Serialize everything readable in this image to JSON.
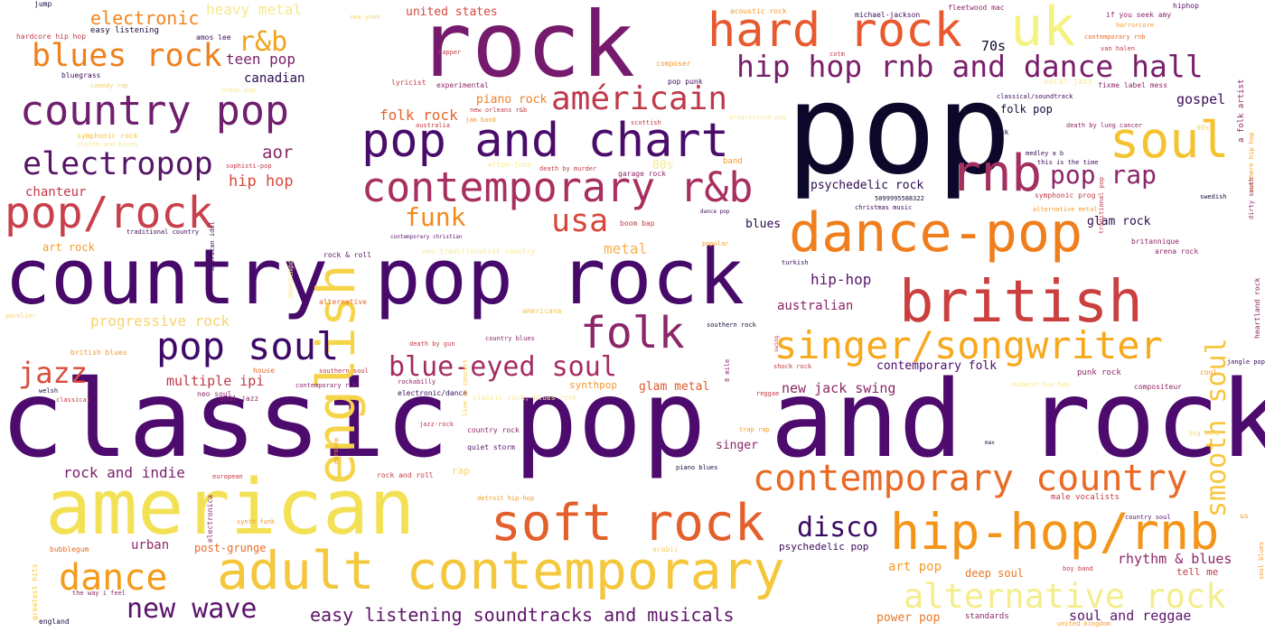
{
  "words": [
    {
      "text": "pop",
      "color": "#0d0829"
    },
    {
      "text": "classic pop and rock",
      "color": "#4e0b6e"
    },
    {
      "text": "country pop rock",
      "color": "#470a6b"
    },
    {
      "text": "rock",
      "color": "#751a6c"
    },
    {
      "text": "american",
      "color": "#f3e155"
    },
    {
      "text": "english",
      "color": "#f5d44a"
    },
    {
      "text": "adult contemporary",
      "color": "#f4c73c"
    },
    {
      "text": "uk",
      "color": "#f4f281"
    },
    {
      "text": "hard rock",
      "color": "#e8592f"
    },
    {
      "text": "soft rock",
      "color": "#e35f2c"
    },
    {
      "text": "contemporary r&b",
      "color": "#a82f5f"
    },
    {
      "text": "dance-pop",
      "color": "#f07e1c"
    },
    {
      "text": "british",
      "color": "#c9403f"
    },
    {
      "text": "rnb",
      "color": "#a4305f"
    },
    {
      "text": "soul",
      "color": "#f5c32f"
    },
    {
      "text": "pop and chart",
      "color": "#4a0c6b"
    },
    {
      "text": "hip-hop/rnb",
      "color": "#f39518"
    },
    {
      "text": "singer/songwriter",
      "color": "#f8a81b"
    },
    {
      "text": "contemporary country",
      "color": "#e86a24"
    },
    {
      "text": "country pop",
      "color": "#701f6e"
    },
    {
      "text": "alternative rock",
      "color": "#f4ed8b"
    },
    {
      "text": "hip hop rnb and dance hall",
      "color": "#7a1e6c"
    },
    {
      "text": "pop soul",
      "color": "#3f0a67"
    },
    {
      "text": "folk",
      "color": "#8c2769"
    },
    {
      "text": "pop/rock",
      "color": "#c8404b"
    },
    {
      "text": "américain",
      "color": "#c0394a"
    },
    {
      "text": "electropop",
      "color": "#571668"
    },
    {
      "text": "blues rock",
      "color": "#f0801c"
    },
    {
      "text": "smooth soul",
      "color": "#f6c63d"
    },
    {
      "text": "usa",
      "color": "#d9473b"
    },
    {
      "text": "blue-eyed soul",
      "color": "#a52d62"
    },
    {
      "text": "jazz",
      "color": "#d84d3d"
    },
    {
      "text": "dance",
      "color": "#f59a19"
    },
    {
      "text": "disco",
      "color": "#3c0b62"
    },
    {
      "text": "funk",
      "color": "#f58a1a"
    },
    {
      "text": "pop rap",
      "color": "#8c2669"
    },
    {
      "text": "new wave",
      "color": "#5a146c"
    },
    {
      "text": "easy listening soundtracks and musicals",
      "color": "#5f156b"
    },
    {
      "text": "r&b",
      "color": "#f1a41c"
    },
    {
      "text": "electronic",
      "color": "#f0851f"
    },
    {
      "text": "heavy metal",
      "color": "#f6e98d"
    },
    {
      "text": "teen pop",
      "color": "#7a1f6b"
    },
    {
      "text": "canadian",
      "color": "#2a0b4e"
    },
    {
      "text": "aor",
      "color": "#8b2767"
    },
    {
      "text": "chanteur",
      "color": "#c13a45"
    },
    {
      "text": "hip hop",
      "color": "#d9483b"
    },
    {
      "text": "70s",
      "color": "#0f0a2a"
    },
    {
      "text": "gospel",
      "color": "#3a0b5a"
    },
    {
      "text": "folk rock",
      "color": "#e6622a"
    },
    {
      "text": "piano rock",
      "color": "#ef7f28"
    },
    {
      "text": "metal",
      "color": "#f7b14d"
    },
    {
      "text": "hip-hop",
      "color": "#5b146a"
    },
    {
      "text": "australian",
      "color": "#8a2767"
    },
    {
      "text": "progressive rock",
      "color": "#f6d36d"
    },
    {
      "text": "multiple ipi",
      "color": "#c13a45"
    },
    {
      "text": "glam metal",
      "color": "#e0592c"
    },
    {
      "text": "new jack swing",
      "color": "#8e2767"
    },
    {
      "text": "contemporary folk",
      "color": "#4a0c6b"
    },
    {
      "text": "rock and indie",
      "color": "#7a1f6b"
    },
    {
      "text": "singer",
      "color": "#8a2767"
    },
    {
      "text": "urban",
      "color": "#8e2767"
    },
    {
      "text": "post-grunge",
      "color": "#e86a24"
    },
    {
      "text": "art pop",
      "color": "#f59a2a"
    },
    {
      "text": "deep soul",
      "color": "#e8782a"
    },
    {
      "text": "rhythm & blues",
      "color": "#8e2767"
    },
    {
      "text": "soul and reggae",
      "color": "#5a146c"
    },
    {
      "text": "power pop",
      "color": "#e8782a"
    },
    {
      "text": "glam rock",
      "color": "#2a0b4e"
    },
    {
      "text": "psychedelic rock",
      "color": "#2a0b4e"
    },
    {
      "text": "psychedelic pop",
      "color": "#3a0b5a"
    },
    {
      "text": "blues",
      "color": "#2a0b4e"
    },
    {
      "text": "folk pop",
      "color": "#1a0a3a"
    },
    {
      "text": "united states",
      "color": "#d9473b"
    },
    {
      "text": "80s",
      "color": "#f6e98d"
    },
    {
      "text": "tell me",
      "color": "#c13a45"
    },
    {
      "text": "art rock",
      "color": "#f59a2a"
    },
    {
      "text": "standards",
      "color": "#8e2767"
    },
    {
      "text": "jump",
      "color": "#1a0a3a"
    },
    {
      "text": "hardcore hip hop",
      "color": "#c13a45"
    },
    {
      "text": "easy listening",
      "color": "#1a0a3a"
    },
    {
      "text": "amos lee",
      "color": "#3a0b5a"
    },
    {
      "text": "bluegrass",
      "color": "#3a0b5a"
    },
    {
      "text": "comedy rap",
      "color": "#f6d36d"
    },
    {
      "text": "urban pop",
      "color": "#f6e98d"
    },
    {
      "text": "symphonic rock",
      "color": "#f6c63d"
    },
    {
      "text": "rhythm and blues",
      "color": "#f6e98d"
    },
    {
      "text": "sophisti-pop",
      "color": "#c13a45"
    },
    {
      "text": "american idol",
      "color": "#3a0b5a"
    },
    {
      "text": "traditional country",
      "color": "#3a0b5a"
    },
    {
      "text": "downtempo",
      "color": "#f6e98d"
    },
    {
      "text": "rock & roll",
      "color": "#5a146c"
    },
    {
      "text": "alternative",
      "color": "#e86a24"
    },
    {
      "text": "parolier",
      "color": "#f6d36d"
    },
    {
      "text": "british blues",
      "color": "#f59a2a"
    },
    {
      "text": "welsh",
      "color": "#1a0a3a"
    },
    {
      "text": "classical",
      "color": "#c13a45"
    },
    {
      "text": "house",
      "color": "#e86a24"
    },
    {
      "text": "neo soul",
      "color": "#8e2767"
    },
    {
      "text": "soul jazz",
      "color": "#8e2767"
    },
    {
      "text": "southern soul",
      "color": "#c13a45"
    },
    {
      "text": "contemporary r b",
      "color": "#8e2767"
    },
    {
      "text": "rockabilly",
      "color": "#8e2767"
    },
    {
      "text": "electronic/dance",
      "color": "#3a0b5a"
    },
    {
      "text": "synthpop",
      "color": "#f59a2a"
    },
    {
      "text": "classic rock, blues rock",
      "color": "#f6e98d"
    },
    {
      "text": "electronica",
      "color": "#8e2767"
    },
    {
      "text": "european",
      "color": "#c13a45"
    },
    {
      "text": "synth funk",
      "color": "#f59a2a"
    },
    {
      "text": "greatest hits",
      "color": "#f6c63d"
    },
    {
      "text": "bubblegum",
      "color": "#e86a24"
    },
    {
      "text": "the way i feel",
      "color": "#8e2767"
    },
    {
      "text": "england",
      "color": "#1a0a3a"
    },
    {
      "text": "country rock",
      "color": "#8e2767"
    },
    {
      "text": "quiet storm",
      "color": "#5a146c"
    },
    {
      "text": "rock and roll",
      "color": "#c13a45"
    },
    {
      "text": "rap",
      "color": "#f6d36d"
    },
    {
      "text": "detroit hip-hop",
      "color": "#f59a2a"
    },
    {
      "text": "arabic",
      "color": "#f6d36d"
    },
    {
      "text": "jazz-rock",
      "color": "#c13a45"
    },
    {
      "text": "europop",
      "color": "#f59a2a"
    },
    {
      "text": "trap rap",
      "color": "#f59a2a"
    },
    {
      "text": "piano blues",
      "color": "#1a0a3a"
    },
    {
      "text": "max",
      "color": "#1a0a3a"
    },
    {
      "text": "reggae",
      "color": "#c13a45"
    },
    {
      "text": "midwest hip hop",
      "color": "#f6e98d"
    },
    {
      "text": "compositeur",
      "color": "#8e2767"
    },
    {
      "text": "big band",
      "color": "#f6d36d"
    },
    {
      "text": "country soul",
      "color": "#5a146c"
    },
    {
      "text": "male vocalists",
      "color": "#c13a45"
    },
    {
      "text": "boy band",
      "color": "#c13a45"
    },
    {
      "text": "united kingdom",
      "color": "#f59a2a"
    },
    {
      "text": "us",
      "color": "#f59a2a"
    },
    {
      "text": "soul blues",
      "color": "#f59a2a"
    },
    {
      "text": "sea yoon",
      "color": "#f6d36d"
    },
    {
      "text": "michael-jackson",
      "color": "#3a0b5a"
    },
    {
      "text": "fleetwood mac",
      "color": "#8e2767"
    },
    {
      "text": "acoustic rock",
      "color": "#f59a2a"
    },
    {
      "text": "if you seek amy",
      "color": "#8e2767"
    },
    {
      "text": "hiphop",
      "color": "#5a146c"
    },
    {
      "text": "horrorcore",
      "color": "#f59a2a"
    },
    {
      "text": "contemporary rnb",
      "color": "#e86a24"
    },
    {
      "text": "van halen",
      "color": "#c13a45"
    },
    {
      "text": "cotm",
      "color": "#c13a45"
    },
    {
      "text": "rapper",
      "color": "#c13a45"
    },
    {
      "text": "composer",
      "color": "#f59a2a"
    },
    {
      "text": "lyricist",
      "color": "#c13a45"
    },
    {
      "text": "experimental",
      "color": "#8e2767"
    },
    {
      "text": "pop punk",
      "color": "#3a0b5a"
    },
    {
      "text": "vocal jazz",
      "color": "#f6e98d"
    },
    {
      "text": "fixme label mess",
      "color": "#8e2767"
    },
    {
      "text": "new orleans r&b",
      "color": "#c13a45"
    },
    {
      "text": "australia",
      "color": "#c13a45"
    },
    {
      "text": "jam band",
      "color": "#f59a2a"
    },
    {
      "text": "scottish",
      "color": "#c13a45"
    },
    {
      "text": "progressive pop",
      "color": "#f6e98d"
    },
    {
      "text": "classical/soundtrack",
      "color": "#3a0b5a"
    },
    {
      "text": "death by lung cancer",
      "color": "#8e2767"
    },
    {
      "text": "90s",
      "color": "#f6d36d"
    },
    {
      "text": "punk",
      "color": "#1a0a3a"
    },
    {
      "text": "elton-john",
      "color": "#f6e98d"
    },
    {
      "text": "death by murder",
      "color": "#c13a45"
    },
    {
      "text": "garage rock",
      "color": "#8e2767"
    },
    {
      "text": "band",
      "color": "#f59a2a"
    },
    {
      "text": "medley a b",
      "color": "#3a0b5a"
    },
    {
      "text": "this is the time",
      "color": "#3a0b5a"
    },
    {
      "text": "5099995588322",
      "color": "#1a0a3a"
    },
    {
      "text": "christmas music",
      "color": "#3a0b5a"
    },
    {
      "text": "symphonic prog",
      "color": "#c13a45"
    },
    {
      "text": "alternative metal",
      "color": "#f59a2a"
    },
    {
      "text": "swedish",
      "color": "#1a0a3a"
    },
    {
      "text": "dance pop",
      "color": "#3a0b5a"
    },
    {
      "text": "boom bap",
      "color": "#c13a45"
    },
    {
      "text": "contemporary christian",
      "color": "#5a146c"
    },
    {
      "text": "neo-traditionalist country",
      "color": "#f6e98d"
    },
    {
      "text": "popular",
      "color": "#f59a2a"
    },
    {
      "text": "turkish",
      "color": "#3a0b5a"
    },
    {
      "text": "britannique",
      "color": "#8e2767"
    },
    {
      "text": "arena rock",
      "color": "#8e2767"
    },
    {
      "text": "live in concert",
      "color": "#f6c63d"
    },
    {
      "text": "country blues",
      "color": "#8e2767"
    },
    {
      "text": "americana",
      "color": "#f6c63d"
    },
    {
      "text": "southern rock",
      "color": "#1a0a3a"
    },
    {
      "text": "8 mile",
      "color": "#8e2767"
    },
    {
      "text": "swing",
      "color": "#c13a45"
    },
    {
      "text": "death by gun",
      "color": "#c13a45"
    },
    {
      "text": "shock rock",
      "color": "#c13a45"
    },
    {
      "text": "punk rock",
      "color": "#8e2767"
    },
    {
      "text": "cool",
      "color": "#f59a2a"
    },
    {
      "text": "jangle pop",
      "color": "#3a0b5a"
    },
    {
      "text": "a folk artist",
      "color": "#8e2767"
    },
    {
      "text": "southern hip hop",
      "color": "#f59a2a"
    },
    {
      "text": "traditional pop",
      "color": "#c13a45"
    },
    {
      "text": "dirty south",
      "color": "#8e2767"
    },
    {
      "text": "heartland rock",
      "color": "#8e2767"
    }
  ]
}
